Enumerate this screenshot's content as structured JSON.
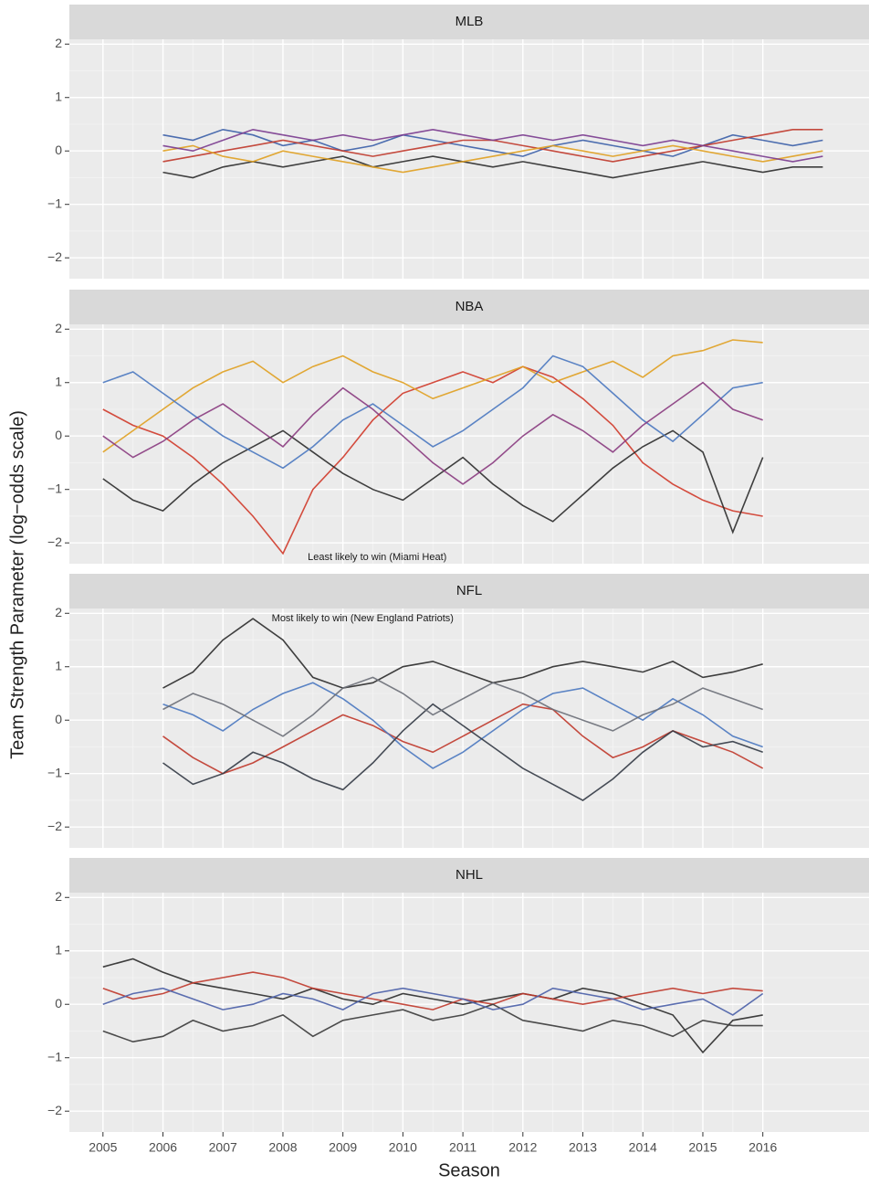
{
  "axis_labels": {
    "x": "Season",
    "y": "Team Strength Parameter (log−odds scale)"
  },
  "chart_data": [
    {
      "type": "line",
      "title": "MLB",
      "x": [
        2006,
        2006.5,
        2007,
        2007.5,
        2008,
        2008.5,
        2009,
        2009.5,
        2010,
        2010.5,
        2011,
        2011.5,
        2012,
        2012.5,
        2013,
        2013.5,
        2014,
        2014.5,
        2015,
        2015.5,
        2016,
        2016.5,
        2017
      ],
      "series": [
        {
          "color": "#3b5fa8",
          "values": [
            0.3,
            0.2,
            0.4,
            0.3,
            0.1,
            0.2,
            0.0,
            0.1,
            0.3,
            0.2,
            0.1,
            0.0,
            -0.1,
            0.1,
            0.2,
            0.1,
            0.0,
            -0.1,
            0.1,
            0.3,
            0.2,
            0.1,
            0.2
          ]
        },
        {
          "color": "#c0392b",
          "values": [
            -0.2,
            -0.1,
            0.0,
            0.1,
            0.2,
            0.1,
            0.0,
            -0.1,
            0.0,
            0.1,
            0.2,
            0.2,
            0.1,
            0.0,
            -0.1,
            -0.2,
            -0.1,
            0.0,
            0.1,
            0.2,
            0.3,
            0.4,
            0.4
          ]
        },
        {
          "color": "#2b2b2b",
          "values": [
            -0.4,
            -0.5,
            -0.3,
            -0.2,
            -0.3,
            -0.2,
            -0.1,
            -0.3,
            -0.2,
            -0.1,
            -0.2,
            -0.3,
            -0.2,
            -0.3,
            -0.4,
            -0.5,
            -0.4,
            -0.3,
            -0.2,
            -0.3,
            -0.4,
            -0.3,
            -0.3
          ]
        },
        {
          "color": "#e0a020",
          "values": [
            0.0,
            0.1,
            -0.1,
            -0.2,
            0.0,
            -0.1,
            -0.2,
            -0.3,
            -0.4,
            -0.3,
            -0.2,
            -0.1,
            0.0,
            0.1,
            0.0,
            -0.1,
            0.0,
            0.1,
            0.0,
            -0.1,
            -0.2,
            -0.1,
            0.0
          ]
        },
        {
          "color": "#7a3b8f",
          "values": [
            0.1,
            0.0,
            0.2,
            0.4,
            0.3,
            0.2,
            0.3,
            0.2,
            0.3,
            0.4,
            0.3,
            0.2,
            0.3,
            0.2,
            0.3,
            0.2,
            0.1,
            0.2,
            0.1,
            0.0,
            -0.1,
            -0.2,
            -0.1
          ]
        }
      ],
      "xlim": [
        2004.44,
        2017.77
      ],
      "ylim": [
        -2.39,
        2.09
      ],
      "xticks": [
        2005,
        2006,
        2007,
        2008,
        2009,
        2010,
        2011,
        2012,
        2013,
        2014,
        2015,
        2016
      ],
      "yticks": [
        {
          "value": -2,
          "label": "−2"
        },
        {
          "value": -1,
          "label": "−1"
        },
        0,
        1,
        2
      ]
    },
    {
      "type": "line",
      "title": "NBA",
      "x": [
        2005,
        2005.5,
        2006,
        2006.5,
        2007,
        2007.5,
        2008,
        2008.5,
        2009,
        2009.5,
        2010,
        2010.5,
        2011,
        2011.5,
        2012,
        2012.5,
        2013,
        2013.5,
        2014,
        2014.5,
        2015,
        2015.5,
        2016
      ],
      "series": [
        {
          "color": "#d03a2a",
          "values": [
            0.5,
            0.2,
            0.0,
            -0.4,
            -0.9,
            -1.5,
            -2.2,
            -1.0,
            -0.4,
            0.3,
            0.8,
            1.0,
            1.2,
            1.0,
            1.3,
            1.1,
            0.7,
            0.2,
            -0.5,
            -0.9,
            -1.2,
            -1.4,
            -1.5
          ]
        },
        {
          "color": "#e0a020",
          "values": [
            -0.3,
            0.1,
            0.5,
            0.9,
            1.2,
            1.4,
            1.0,
            1.3,
            1.5,
            1.2,
            1.0,
            0.7,
            0.9,
            1.1,
            1.3,
            1.0,
            1.2,
            1.4,
            1.1,
            1.5,
            1.6,
            1.8,
            1.75
          ]
        },
        {
          "color": "#2b2b2b",
          "values": [
            -0.8,
            -1.2,
            -1.4,
            -0.9,
            -0.5,
            -0.2,
            0.1,
            -0.3,
            -0.7,
            -1.0,
            -1.2,
            -0.8,
            -0.4,
            -0.9,
            -1.3,
            -1.6,
            -1.1,
            -0.6,
            -0.2,
            0.1,
            -0.3,
            -1.8,
            -0.4
          ]
        },
        {
          "color": "#4a78c0",
          "values": [
            1.0,
            1.2,
            0.8,
            0.4,
            0.0,
            -0.3,
            -0.6,
            -0.2,
            0.3,
            0.6,
            0.2,
            -0.2,
            0.1,
            0.5,
            0.9,
            1.5,
            1.3,
            0.8,
            0.3,
            -0.1,
            0.4,
            0.9,
            1.0
          ]
        },
        {
          "color": "#8a3b7f",
          "values": [
            0.0,
            -0.4,
            -0.1,
            0.3,
            0.6,
            0.2,
            -0.2,
            0.4,
            0.9,
            0.5,
            0.0,
            -0.5,
            -0.9,
            -0.5,
            0.0,
            0.4,
            0.1,
            -0.3,
            0.2,
            0.6,
            1.0,
            0.5,
            0.3
          ]
        }
      ],
      "annotations": [
        {
          "text": "Least likely to win (Miami Heat)",
          "x": 2008.2,
          "y": -2.2
        }
      ],
      "xlim": [
        2004.44,
        2017.77
      ],
      "ylim": [
        -2.39,
        2.09
      ],
      "xticks": [
        2005,
        2006,
        2007,
        2008,
        2009,
        2010,
        2011,
        2012,
        2013,
        2014,
        2015,
        2016
      ],
      "yticks": [
        {
          "value": -2,
          "label": "−2"
        },
        {
          "value": -1,
          "label": "−1"
        },
        0,
        1,
        2
      ]
    },
    {
      "type": "line",
      "title": "NFL",
      "x": [
        2006,
        2006.5,
        2007,
        2007.5,
        2008,
        2008.5,
        2009,
        2009.5,
        2010,
        2010.5,
        2011,
        2011.5,
        2012,
        2012.5,
        2013,
        2013.5,
        2014,
        2014.5,
        2015,
        2015.5,
        2016
      ],
      "series": [
        {
          "color": "#2b2b2b",
          "values": [
            0.6,
            0.9,
            1.5,
            1.9,
            1.5,
            0.8,
            0.6,
            0.7,
            1.0,
            1.1,
            0.9,
            0.7,
            0.8,
            1.0,
            1.1,
            1.0,
            0.9,
            1.1,
            0.8,
            0.9,
            1.05
          ]
        },
        {
          "color": "#c0392b",
          "values": [
            -0.3,
            -0.7,
            -1.0,
            -0.8,
            -0.5,
            -0.2,
            0.1,
            -0.1,
            -0.4,
            -0.6,
            -0.3,
            0.0,
            0.3,
            0.2,
            -0.3,
            -0.7,
            -0.5,
            -0.2,
            -0.4,
            -0.6,
            -0.9
          ]
        },
        {
          "color": "#4a78c0",
          "values": [
            0.3,
            0.1,
            -0.2,
            0.2,
            0.5,
            0.7,
            0.4,
            0.0,
            -0.5,
            -0.9,
            -0.6,
            -0.2,
            0.2,
            0.5,
            0.6,
            0.3,
            0.0,
            0.4,
            0.1,
            -0.3,
            -0.5
          ]
        },
        {
          "color": "#333a45",
          "values": [
            -0.8,
            -1.2,
            -1.0,
            -0.6,
            -0.8,
            -1.1,
            -1.3,
            -0.8,
            -0.2,
            0.3,
            -0.1,
            -0.5,
            -0.9,
            -1.2,
            -1.5,
            -1.1,
            -0.6,
            -0.2,
            -0.5,
            -0.4,
            -0.6
          ]
        },
        {
          "color": "#6b6f78",
          "values": [
            0.2,
            0.5,
            0.3,
            0.0,
            -0.3,
            0.1,
            0.6,
            0.8,
            0.5,
            0.1,
            0.4,
            0.7,
            0.5,
            0.2,
            0.0,
            -0.2,
            0.1,
            0.3,
            0.6,
            0.4,
            0.2
          ]
        }
      ],
      "annotations": [
        {
          "text": "Most likely to win (New England Patriots)",
          "x": 2007.6,
          "y": 1.9
        }
      ],
      "xlim": [
        2004.44,
        2017.77
      ],
      "ylim": [
        -2.39,
        2.09
      ],
      "xticks": [
        2005,
        2006,
        2007,
        2008,
        2009,
        2010,
        2011,
        2012,
        2013,
        2014,
        2015,
        2016
      ],
      "yticks": [
        {
          "value": -2,
          "label": "−2"
        },
        {
          "value": -1,
          "label": "−1"
        },
        0,
        1,
        2
      ]
    },
    {
      "type": "line",
      "title": "NHL",
      "x": [
        2005,
        2005.5,
        2006,
        2006.5,
        2007,
        2007.5,
        2008,
        2008.5,
        2009,
        2009.5,
        2010,
        2010.5,
        2011,
        2011.5,
        2012,
        2012.5,
        2013,
        2013.5,
        2014,
        2014.5,
        2015,
        2015.5,
        2016
      ],
      "series": [
        {
          "color": "#2b2b2b",
          "values": [
            0.7,
            0.85,
            0.6,
            0.4,
            0.3,
            0.2,
            0.1,
            0.3,
            0.1,
            0.0,
            0.2,
            0.1,
            0.0,
            0.1,
            0.2,
            0.1,
            0.3,
            0.2,
            0.0,
            -0.2,
            -0.9,
            -0.3,
            -0.2
          ]
        },
        {
          "color": "#c0392b",
          "values": [
            0.3,
            0.1,
            0.2,
            0.4,
            0.5,
            0.6,
            0.5,
            0.3,
            0.2,
            0.1,
            0.0,
            -0.1,
            0.1,
            0.0,
            0.2,
            0.1,
            0.0,
            0.1,
            0.2,
            0.3,
            0.2,
            0.3,
            0.25
          ]
        },
        {
          "color": "#3a3a3a",
          "values": [
            -0.5,
            -0.7,
            -0.6,
            -0.3,
            -0.5,
            -0.4,
            -0.2,
            -0.6,
            -0.3,
            -0.2,
            -0.1,
            -0.3,
            -0.2,
            0.0,
            -0.3,
            -0.4,
            -0.5,
            -0.3,
            -0.4,
            -0.6,
            -0.3,
            -0.4,
            -0.4
          ]
        },
        {
          "color": "#4a5fa8",
          "values": [
            0.0,
            0.2,
            0.3,
            0.1,
            -0.1,
            0.0,
            0.2,
            0.1,
            -0.1,
            0.2,
            0.3,
            0.2,
            0.1,
            -0.1,
            0.0,
            0.3,
            0.2,
            0.1,
            -0.1,
            0.0,
            0.1,
            -0.2,
            0.2
          ]
        }
      ],
      "xlim": [
        2004.44,
        2017.77
      ],
      "ylim": [
        -2.39,
        2.09
      ],
      "xticks": [
        2005,
        2006,
        2007,
        2008,
        2009,
        2010,
        2011,
        2012,
        2013,
        2014,
        2015,
        2016
      ],
      "yticks": [
        {
          "value": -2,
          "label": "−2"
        },
        {
          "value": -1,
          "label": "−1"
        },
        0,
        1,
        2
      ]
    }
  ]
}
